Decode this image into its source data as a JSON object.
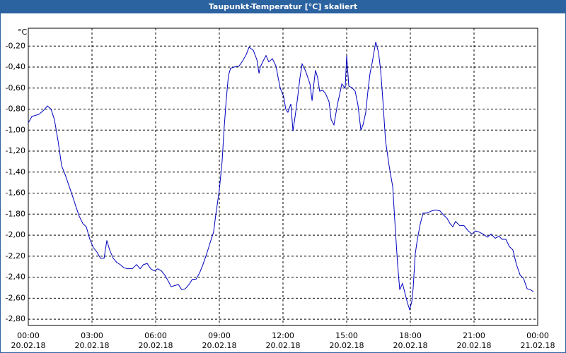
{
  "chart_data": {
    "type": "line",
    "title": "Taupunkt-Temperatur [°C] skaliert",
    "y_label": "°C",
    "xlim": [
      0,
      24
    ],
    "ylim": [
      -2.86,
      -0.03
    ],
    "xticks": [
      {
        "value": 0,
        "label": "00:00",
        "sublabel": "20.02.18"
      },
      {
        "value": 3,
        "label": "03:00",
        "sublabel": "20.02.18"
      },
      {
        "value": 6,
        "label": "06:00",
        "sublabel": "20.02.18"
      },
      {
        "value": 9,
        "label": "09:00",
        "sublabel": "20.02.18"
      },
      {
        "value": 12,
        "label": "12:00",
        "sublabel": "20.02.18"
      },
      {
        "value": 15,
        "label": "15:00",
        "sublabel": "20.02.18"
      },
      {
        "value": 18,
        "label": "18:00",
        "sublabel": "20.02.18"
      },
      {
        "value": 21,
        "label": "21:00",
        "sublabel": "20.02.18"
      },
      {
        "value": 24,
        "label": "00:00",
        "sublabel": "21.02.18"
      }
    ],
    "yticks": [
      {
        "value": -0.2,
        "label": "-0,20"
      },
      {
        "value": -0.4,
        "label": "-0,40"
      },
      {
        "value": -0.6,
        "label": "-0,60"
      },
      {
        "value": -0.8,
        "label": "-0,80"
      },
      {
        "value": -1.0,
        "label": "-1,00"
      },
      {
        "value": -1.2,
        "label": "-1,20"
      },
      {
        "value": -1.4,
        "label": "-1,40"
      },
      {
        "value": -1.6,
        "label": "-1,60"
      },
      {
        "value": -1.8,
        "label": "-1,80"
      },
      {
        "value": -2.0,
        "label": "-2,00"
      },
      {
        "value": -2.2,
        "label": "-2,20"
      },
      {
        "value": -2.4,
        "label": "-2,40"
      },
      {
        "value": -2.6,
        "label": "-2,60"
      },
      {
        "value": -2.8,
        "label": "-2,80"
      }
    ],
    "grid": true,
    "x": [
      0,
      0.17,
      0.5,
      0.73,
      0.9,
      1.07,
      1.23,
      1.4,
      1.57,
      1.73,
      1.9,
      2.07,
      2.23,
      2.4,
      2.57,
      2.73,
      2.9,
      3.07,
      3.23,
      3.4,
      3.57,
      3.7,
      3.83,
      4,
      4.17,
      4.33,
      4.5,
      4.67,
      4.9,
      5.1,
      5.27,
      5.43,
      5.6,
      5.77,
      5.93,
      6.1,
      6.27,
      6.43,
      6.6,
      6.73,
      6.9,
      7.07,
      7.23,
      7.4,
      7.57,
      7.73,
      7.9,
      8.07,
      8.23,
      8.4,
      8.57,
      8.73,
      8.83,
      9,
      9.13,
      9.23,
      9.33,
      9.43,
      9.53,
      9.7,
      9.93,
      10.1,
      10.27,
      10.4,
      10.6,
      10.77,
      10.87,
      10.93,
      11.07,
      11.2,
      11.33,
      11.5,
      11.67,
      11.77,
      11.87,
      12.03,
      12.13,
      12.23,
      12.37,
      12.47,
      12.57,
      12.67,
      12.8,
      12.9,
      13.07,
      13.27,
      13.37,
      13.43,
      13.53,
      13.63,
      13.73,
      13.87,
      14,
      14.17,
      14.27,
      14.4,
      14.57,
      14.67,
      14.77,
      14.93,
      15,
      15.1,
      15.27,
      15.4,
      15.53,
      15.67,
      15.77,
      15.9,
      16,
      16.1,
      16.2,
      16.37,
      16.5,
      16.6,
      16.7,
      16.83,
      17,
      17.17,
      17.3,
      17.4,
      17.5,
      17.63,
      17.73,
      17.87,
      17.97,
      18.07,
      18.13,
      18.23,
      18.33,
      18.47,
      18.6,
      18.77,
      19,
      19.2,
      19.4,
      19.57,
      19.73,
      19.87,
      20,
      20.13,
      20.33,
      20.53,
      20.73,
      20.9,
      21.07,
      21.23,
      21.43,
      21.63,
      21.8,
      22,
      22.17,
      22.33,
      22.5,
      22.67,
      22.83,
      23,
      23.17,
      23.33,
      23.5,
      23.67,
      23.8
    ],
    "series": [
      {
        "name": "Taupunkt-Temperatur",
        "color": "#0000c0",
        "values": [
          -0.93,
          -0.87,
          -0.85,
          -0.81,
          -0.77,
          -0.8,
          -0.9,
          -1.1,
          -1.34,
          -1.42,
          -1.52,
          -1.62,
          -1.72,
          -1.82,
          -1.89,
          -1.92,
          -2.04,
          -2.12,
          -2.16,
          -2.22,
          -2.22,
          -2.05,
          -2.14,
          -2.22,
          -2.26,
          -2.28,
          -2.31,
          -2.32,
          -2.32,
          -2.28,
          -2.32,
          -2.28,
          -2.27,
          -2.32,
          -2.34,
          -2.32,
          -2.34,
          -2.38,
          -2.44,
          -2.49,
          -2.48,
          -2.47,
          -2.52,
          -2.51,
          -2.47,
          -2.42,
          -2.42,
          -2.36,
          -2.28,
          -2.18,
          -2.07,
          -1.97,
          -1.81,
          -1.57,
          -1.3,
          -0.97,
          -0.7,
          -0.48,
          -0.41,
          -0.4,
          -0.39,
          -0.34,
          -0.28,
          -0.21,
          -0.24,
          -0.33,
          -0.46,
          -0.4,
          -0.34,
          -0.29,
          -0.35,
          -0.32,
          -0.39,
          -0.5,
          -0.6,
          -0.68,
          -0.8,
          -0.83,
          -0.75,
          -1.01,
          -0.87,
          -0.72,
          -0.5,
          -0.37,
          -0.44,
          -0.56,
          -0.72,
          -0.6,
          -0.43,
          -0.5,
          -0.63,
          -0.62,
          -0.65,
          -0.73,
          -0.9,
          -0.95,
          -0.75,
          -0.66,
          -0.56,
          -0.6,
          -0.29,
          -0.58,
          -0.6,
          -0.63,
          -0.76,
          -1.0,
          -0.95,
          -0.83,
          -0.63,
          -0.46,
          -0.36,
          -0.16,
          -0.26,
          -0.43,
          -0.7,
          -1.1,
          -1.34,
          -1.54,
          -1.97,
          -2.28,
          -2.52,
          -2.46,
          -2.54,
          -2.65,
          -2.71,
          -2.63,
          -2.51,
          -2.18,
          -2.04,
          -1.89,
          -1.79,
          -1.79,
          -1.77,
          -1.76,
          -1.77,
          -1.81,
          -1.84,
          -1.89,
          -1.92,
          -1.87,
          -1.91,
          -1.91,
          -1.96,
          -1.99,
          -1.96,
          -1.97,
          -1.99,
          -2.02,
          -1.99,
          -2.03,
          -2.01,
          -2.04,
          -2.04,
          -2.11,
          -2.14,
          -2.28,
          -2.38,
          -2.41,
          -2.51,
          -2.52,
          -2.54
        ]
      }
    ]
  }
}
